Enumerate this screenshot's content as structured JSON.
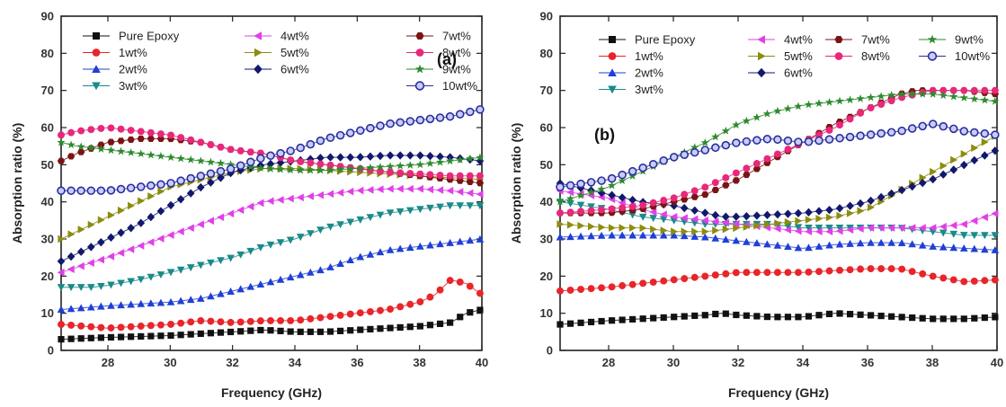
{
  "colors": {
    "Pure Epoxy": "#111111",
    "1wt%": "#e8252a",
    "2wt%": "#1f3fd6",
    "3wt%": "#1a8a8a",
    "4wt%": "#e040e8",
    "5wt%": "#8c8c10",
    "6wt%": "#12186b",
    "7wt%": "#7a1414",
    "8wt%": "#e8287a",
    "9wt%": "#2e8a2e",
    "10wt%": "#2a2f9a"
  },
  "markers": {
    "Pure Epoxy": "square",
    "1wt%": "circle",
    "2wt%": "triangle-up",
    "3wt%": "triangle-down",
    "4wt%": "triangle-left",
    "5wt%": "triangle-right",
    "6wt%": "diamond",
    "7wt%": "hexagon",
    "8wt%": "circle",
    "9wt%": "star",
    "10wt%": "circle-open"
  },
  "chart_data": [
    {
      "type": "line",
      "panel_label": "(a)",
      "xlabel": "Frequency (GHz)",
      "ylabel": "Absorption ratio (%)",
      "xlim": [
        26.5,
        40
      ],
      "ylim": [
        0,
        90
      ],
      "x_ticks": [
        28,
        30,
        32,
        34,
        36,
        38,
        40
      ],
      "y_ticks": [
        0,
        10,
        20,
        30,
        40,
        50,
        60,
        70,
        80,
        90
      ],
      "grid": false,
      "legend_placement": "top",
      "legend_columns": [
        [
          "Pure Epoxy",
          "1wt%",
          "2wt%",
          "3wt%"
        ],
        [
          "4wt%",
          "5wt%",
          "6wt%"
        ],
        [
          "7wt%",
          "8wt%",
          "9wt%",
          "10wt%"
        ]
      ],
      "series": [
        {
          "name": "Pure Epoxy",
          "x": [
            26.5,
            28,
            30,
            31,
            32,
            33,
            34,
            35,
            36,
            37,
            38,
            39,
            39.5,
            40
          ],
          "y": [
            3,
            3.5,
            4,
            4.5,
            5,
            5.5,
            5,
            5,
            5.5,
            6,
            6.5,
            7.5,
            10,
            11
          ]
        },
        {
          "name": "1wt%",
          "x": [
            26.5,
            28,
            30,
            31,
            32,
            33,
            34,
            35,
            36,
            37,
            38,
            38.5,
            39,
            39.5,
            40
          ],
          "y": [
            7,
            6,
            7,
            8,
            7.5,
            8,
            8,
            9,
            10,
            11,
            13,
            15,
            19,
            18,
            15
          ]
        },
        {
          "name": "2wt%",
          "x": [
            26.5,
            28,
            30,
            31,
            32,
            33,
            34,
            35,
            36,
            37,
            38,
            39,
            40
          ],
          "y": [
            11,
            12,
            13,
            14,
            16,
            18,
            20,
            22,
            25,
            27,
            28,
            29,
            30
          ]
        },
        {
          "name": "3wt%",
          "x": [
            26.5,
            27.5,
            28,
            29,
            30,
            31,
            32,
            33,
            34,
            35,
            36,
            37,
            38,
            39,
            40
          ],
          "y": [
            17,
            17,
            17.5,
            19,
            21,
            23,
            25,
            28,
            30,
            33,
            35,
            37,
            38,
            39,
            39
          ]
        },
        {
          "name": "4wt%",
          "x": [
            26.5,
            28,
            30,
            31,
            32,
            33,
            34,
            35,
            36,
            37,
            38,
            39,
            40
          ],
          "y": [
            21,
            25,
            31,
            34,
            37,
            40,
            41,
            42,
            43,
            43.5,
            43.5,
            43,
            42
          ]
        },
        {
          "name": "5wt%",
          "x": [
            26.5,
            28,
            29,
            30,
            31,
            32,
            33,
            34,
            35,
            36,
            37,
            38,
            39,
            40
          ],
          "y": [
            30,
            36,
            40,
            44,
            46,
            48,
            49,
            49,
            48.5,
            48,
            47.5,
            47,
            46.5,
            46
          ]
        },
        {
          "name": "6wt%",
          "x": [
            26.5,
            28,
            29,
            30,
            31,
            32,
            33,
            34,
            35,
            36,
            37,
            38,
            39,
            40
          ],
          "y": [
            24,
            30,
            34,
            39,
            44,
            48,
            50,
            51,
            52,
            52,
            52.5,
            52.5,
            52,
            51
          ]
        },
        {
          "name": "7wt%",
          "x": [
            26.5,
            27,
            28,
            29,
            30,
            31,
            32,
            33,
            34,
            35,
            36,
            37,
            38,
            39,
            40
          ],
          "y": [
            51,
            53,
            56,
            57,
            57,
            56,
            54,
            53,
            51,
            50,
            49,
            48,
            47,
            46,
            45
          ]
        },
        {
          "name": "8wt%",
          "x": [
            26.5,
            27,
            28,
            29,
            30,
            31,
            32,
            33,
            34,
            35,
            36,
            37,
            38,
            39,
            40
          ],
          "y": [
            58,
            59,
            60,
            59,
            58,
            56,
            54,
            53,
            51,
            50,
            49,
            48,
            47.5,
            47,
            47
          ]
        },
        {
          "name": "9wt%",
          "x": [
            26.5,
            27,
            28,
            29,
            30,
            31,
            32,
            33,
            34,
            35,
            36,
            37,
            38,
            39,
            40
          ],
          "y": [
            56,
            55,
            54,
            53,
            52,
            51,
            50,
            49,
            48.5,
            48.5,
            49,
            49.5,
            50,
            51,
            52
          ]
        },
        {
          "name": "10wt%",
          "x": [
            26.5,
            28,
            29,
            30,
            31,
            32,
            33,
            34,
            35,
            36,
            37,
            38,
            39,
            40
          ],
          "y": [
            43,
            43,
            44,
            45,
            47,
            49,
            52,
            54,
            57,
            59,
            61,
            62,
            63,
            65
          ]
        }
      ]
    },
    {
      "type": "line",
      "panel_label": "(b)",
      "xlabel": "Frequency (GHz)",
      "ylabel": "Absorption ratio (%)",
      "xlim": [
        26.5,
        40
      ],
      "ylim": [
        0,
        90
      ],
      "x_ticks": [
        28,
        30,
        32,
        34,
        36,
        38,
        40
      ],
      "y_ticks": [
        0,
        10,
        20,
        30,
        40,
        50,
        60,
        70,
        80,
        90
      ],
      "grid": false,
      "legend_placement": "top",
      "legend_columns": [
        [
          "Pure Epoxy",
          "1wt%",
          "2wt%",
          "3wt%"
        ],
        [
          "4wt%",
          "5wt%",
          "6wt%"
        ],
        [
          "7wt%",
          "8wt%"
        ],
        [
          "9wt%",
          "10wt%"
        ]
      ],
      "series": [
        {
          "name": "Pure Epoxy",
          "x": [
            26.5,
            28,
            29,
            30,
            31,
            31.5,
            32,
            33,
            34,
            35,
            36,
            37,
            38,
            39,
            40
          ],
          "y": [
            7,
            8,
            8.5,
            9,
            9.5,
            10,
            9.5,
            9,
            9,
            10,
            9.5,
            9,
            8.5,
            8.5,
            9
          ]
        },
        {
          "name": "1wt%",
          "x": [
            26.5,
            28,
            29,
            30,
            31,
            32,
            33,
            34,
            35,
            36,
            37,
            38,
            39,
            40
          ],
          "y": [
            16,
            17,
            18,
            19,
            20,
            21,
            21,
            21,
            21.5,
            22,
            22,
            20,
            18.5,
            19
          ]
        },
        {
          "name": "2wt%",
          "x": [
            26.5,
            28,
            29,
            30,
            31,
            32,
            33,
            34,
            35,
            36,
            37,
            38,
            39,
            40
          ],
          "y": [
            30.5,
            31,
            31,
            31,
            30.5,
            29.5,
            28.5,
            27.5,
            28.5,
            29,
            29,
            28,
            27.5,
            27
          ]
        },
        {
          "name": "3wt%",
          "x": [
            26.5,
            28,
            29,
            30,
            31,
            32,
            33,
            34,
            35,
            36,
            37,
            38,
            39,
            40
          ],
          "y": [
            40,
            38,
            36,
            35,
            34,
            34,
            34,
            33,
            33,
            33,
            33,
            32,
            31,
            31
          ]
        },
        {
          "name": "4wt%",
          "x": [
            26.5,
            28,
            29,
            30,
            31,
            32,
            33,
            34,
            35,
            36,
            37,
            38,
            39,
            40
          ],
          "y": [
            43,
            41,
            38,
            36,
            35,
            34,
            33,
            32,
            32,
            33,
            33,
            33,
            34,
            37
          ]
        },
        {
          "name": "5wt%",
          "x": [
            26.5,
            28,
            29,
            30,
            31,
            32,
            33,
            34,
            35,
            36,
            37,
            38,
            39,
            40
          ],
          "y": [
            34,
            33,
            33,
            32,
            32,
            33,
            34,
            35,
            36,
            38,
            43,
            48,
            53,
            58
          ]
        },
        {
          "name": "6wt%",
          "x": [
            26.5,
            28,
            29,
            30,
            31,
            31.5,
            32,
            33,
            34,
            35,
            36,
            37,
            38,
            39,
            40
          ],
          "y": [
            45,
            42,
            40,
            39,
            37,
            36,
            36,
            36.5,
            37,
            38,
            40,
            43,
            46,
            50,
            54
          ]
        },
        {
          "name": "7wt%",
          "x": [
            26.5,
            28,
            29,
            30,
            31,
            32,
            33,
            34,
            35,
            36,
            37,
            37.5,
            38,
            39,
            40
          ],
          "y": [
            37,
            37,
            38,
            40,
            42,
            46,
            51,
            56,
            61,
            65,
            69,
            70,
            70,
            70,
            69
          ]
        },
        {
          "name": "8wt%",
          "x": [
            26.5,
            28,
            29,
            30,
            31,
            32,
            33,
            34,
            35,
            36,
            37,
            38,
            39,
            40
          ],
          "y": [
            37,
            38,
            39,
            41,
            44,
            48,
            52,
            56,
            60,
            65,
            68,
            70,
            70,
            70
          ]
        },
        {
          "name": "9wt%",
          "x": [
            26.5,
            28,
            29,
            30,
            31,
            32,
            33,
            34,
            35,
            36,
            37,
            38,
            39,
            40
          ],
          "y": [
            40,
            44,
            48,
            52,
            56,
            61,
            64,
            66,
            67,
            68,
            69,
            69,
            68,
            67
          ]
        },
        {
          "name": "10wt%",
          "x": [
            26.5,
            28,
            29,
            30,
            31,
            32,
            33,
            34,
            35,
            36,
            37,
            38,
            39,
            40
          ],
          "y": [
            44,
            46,
            49,
            52,
            54,
            56,
            57,
            56,
            57,
            58,
            59,
            61,
            59,
            58
          ]
        }
      ]
    }
  ]
}
